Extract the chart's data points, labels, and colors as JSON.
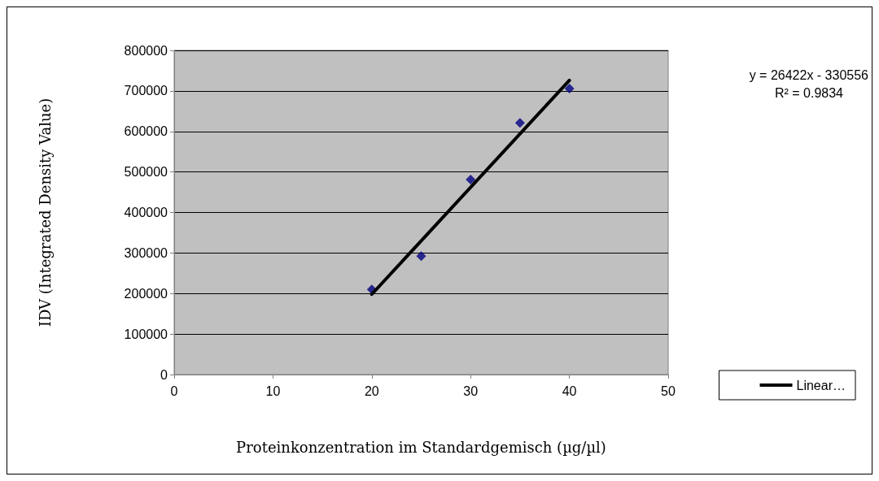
{
  "chart_data": {
    "type": "scatter",
    "xlabel": "Proteinkonzentration im Standardgemisch (µg/µl)",
    "ylabel": "IDV (Integrated Density Value)",
    "series": [
      {
        "color": "#000080",
        "marker": "diamond",
        "x": [
          20,
          25,
          30,
          35,
          40
        ],
        "values": [
          210000,
          292000,
          481000,
          621000,
          706000
        ]
      },
      {
        "type": "line",
        "name": "Linear…",
        "color": "#000000",
        "marker": "none",
        "line_style": "solid",
        "x": [
          20,
          40
        ],
        "values": [
          198000,
          726000
        ]
      }
    ],
    "xlim": [
      0,
      50
    ],
    "xticks": [
      0,
      10,
      20,
      30,
      40,
      50
    ],
    "ylim": [
      0,
      800000
    ],
    "yticks": [
      0,
      100000,
      200000,
      300000,
      400000,
      500000,
      600000,
      700000,
      800000
    ],
    "grid": "y",
    "legend": "right",
    "annotations": [
      "y = 26422x - 330556",
      "R² = 0.9834"
    ]
  }
}
